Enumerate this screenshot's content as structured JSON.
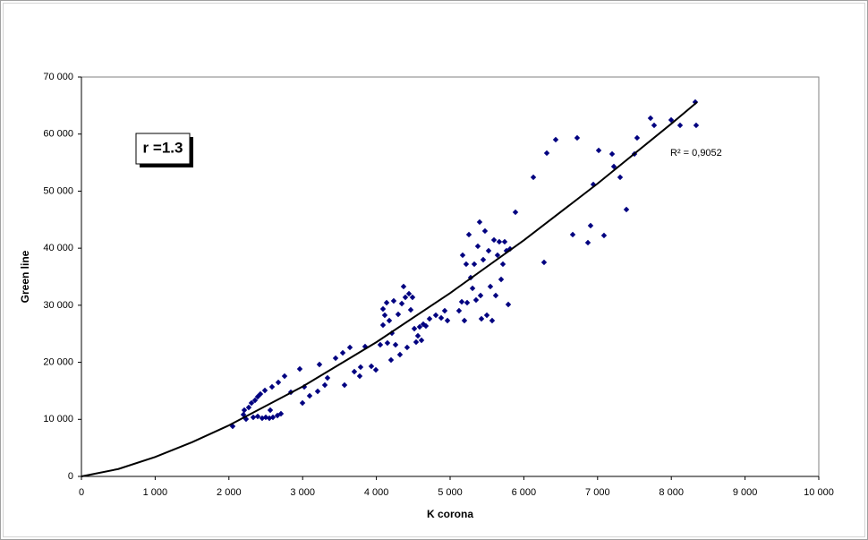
{
  "chart_data": {
    "type": "scatter",
    "x_label": "K corona",
    "y_label": "Green line",
    "annotation": "r =1.3",
    "xlim": [
      0,
      10000
    ],
    "ylim": [
      0,
      70000
    ],
    "xticks": [
      0,
      {
        "value": 1000,
        "label": "1 000"
      },
      {
        "value": 2000,
        "label": "2 000"
      },
      {
        "value": 3000,
        "label": "3 000"
      },
      {
        "value": 4000,
        "label": "4 000"
      },
      {
        "value": 5000,
        "label": "5 000"
      },
      {
        "value": 6000,
        "label": "6 000"
      },
      {
        "value": 7000,
        "label": "7 000"
      },
      {
        "value": 8000,
        "label": "8 000"
      },
      {
        "value": 9000,
        "label": "9 000"
      },
      {
        "value": 10000,
        "label": "10 000"
      }
    ],
    "yticks": [
      0,
      {
        "value": 10000,
        "label": "10 000"
      },
      {
        "value": 20000,
        "label": "20 000"
      },
      {
        "value": 30000,
        "label": "30 000"
      },
      {
        "value": 40000,
        "label": "40 000"
      },
      {
        "value": 50000,
        "label": "50 000"
      },
      {
        "value": 60000,
        "label": "60 000"
      },
      {
        "value": 70000,
        "label": "70 000"
      }
    ],
    "grid": false,
    "x": [
      2051,
      2197,
      2209,
      2233,
      2269,
      2306,
      2354,
      2391,
      2427,
      2488,
      2330,
      2391,
      2451,
      2500,
      2549,
      2597,
      2658,
      2706,
      2561,
      2585,
      2670,
      2755,
      2840,
      2961,
      2998,
      3022,
      3095,
      3204,
      3228,
      3301,
      3337,
      3447,
      3544,
      3568,
      3641,
      3701,
      3774,
      3786,
      3847,
      3932,
      3993,
      4053,
      4090,
      4090,
      4114,
      4139,
      4150,
      4175,
      4199,
      4211,
      4235,
      4260,
      4296,
      4320,
      4345,
      4369,
      4393,
      4417,
      4442,
      4466,
      4490,
      4515,
      4539,
      4563,
      4587,
      4612,
      4636,
      4672,
      4721,
      4806,
      4879,
      4927,
      4964,
      5121,
      5158,
      5170,
      5194,
      5218,
      5231,
      5255,
      5279,
      5304,
      5328,
      5352,
      5376,
      5400,
      5413,
      5425,
      5449,
      5473,
      5498,
      5522,
      5546,
      5570,
      5595,
      5619,
      5643,
      5667,
      5692,
      5716,
      5740,
      5764,
      5789,
      5813,
      5886,
      6129,
      6274,
      6311,
      6432,
      6663,
      6723,
      6869,
      6905,
      6942,
      7015,
      7087,
      7197,
      7221,
      7306,
      7391,
      7500,
      7536,
      7718,
      7767,
      7998,
      8119,
      8325,
      8337
    ],
    "series": [
      {
        "color": "#000080",
        "values": [
          8790,
          10830,
          11615,
          10045,
          12086,
          12871,
          13342,
          13970,
          14440,
          15068,
          10360,
          10516,
          10202,
          10360,
          10202,
          10360,
          10673,
          10987,
          11615,
          15696,
          16481,
          17580,
          14754,
          18835,
          12871,
          15696,
          14126,
          14911,
          19620,
          16010,
          17266,
          20720,
          21661,
          16010,
          22603,
          18364,
          17580,
          19150,
          22760,
          19306,
          18678,
          23073,
          26526,
          29351,
          28253,
          30450,
          23387,
          27311,
          20405,
          25113,
          30764,
          23073,
          28410,
          21347,
          30293,
          33276,
          31392,
          22603,
          32020,
          29194,
          31392,
          25898,
          23544,
          24642,
          26212,
          23858,
          26683,
          26369,
          27625,
          28253,
          27782,
          29037,
          27311,
          29037,
          30607,
          38770,
          27311,
          37200,
          30450,
          42380,
          34845,
          32962,
          37200,
          30921,
          40339,
          44577,
          31706,
          27625,
          37984,
          43007,
          28253,
          39553,
          33276,
          27311,
          41438,
          31706,
          38770,
          41124,
          34531,
          37200,
          41124,
          39553,
          30136,
          39868,
          46303,
          52424,
          37514,
          56663,
          59017,
          42380,
          59330,
          40967,
          43949,
          51169,
          57134,
          42223,
          56506,
          54308,
          52424,
          46774,
          56506,
          59330,
          62784,
          61528,
          62470,
          61528,
          65610,
          61528
        ]
      }
    ],
    "trendline": {
      "color": "#000000",
      "label": "R² = 0,9052",
      "x": [
        0,
        500,
        1000,
        1500,
        2000,
        3000,
        4000,
        5000,
        6000,
        7000,
        8000,
        8350
      ],
      "values": [
        0,
        1296,
        3406,
        5994,
        8950,
        15750,
        23520,
        32130,
        41390,
        51320,
        61810,
        65600
      ]
    }
  }
}
